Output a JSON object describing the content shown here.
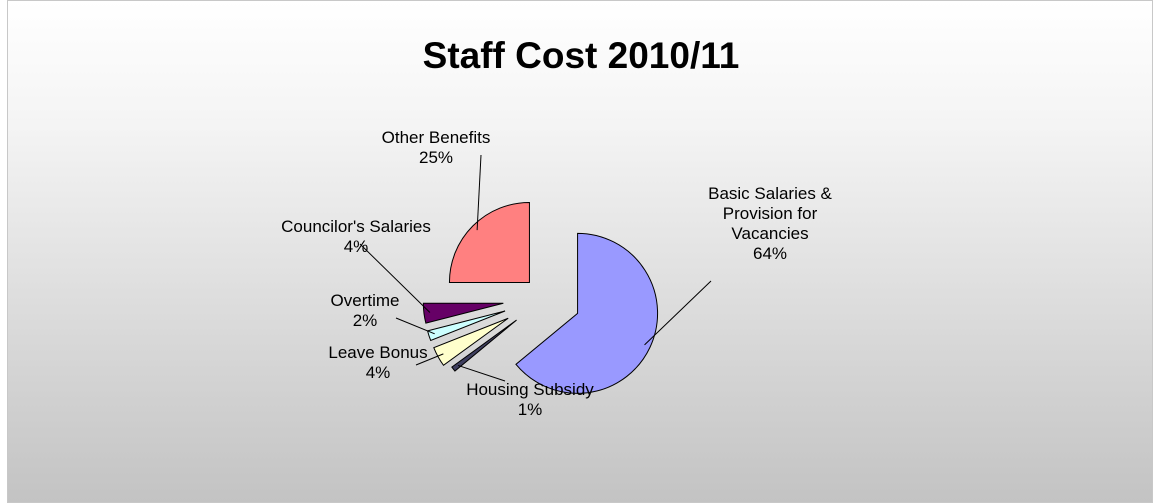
{
  "chart_data": {
    "type": "pie",
    "title": "Staff Cost 2010/11",
    "exploded": true,
    "slices": [
      {
        "label": "Basic Salaries & Provision for Vacancies",
        "label_lines": [
          "Basic Salaries &",
          "Provision for",
          "Vacancies"
        ],
        "percent_label": "64%",
        "value": 64,
        "color": "#9999ff"
      },
      {
        "label": "Housing Subsidy",
        "label_lines": [
          "Housing Subsidy"
        ],
        "percent_label": "1%",
        "value": 1,
        "color": "#3f3f5f"
      },
      {
        "label": "Leave Bonus",
        "label_lines": [
          "Leave Bonus"
        ],
        "percent_label": "4%",
        "value": 4,
        "color": "#ffffcc"
      },
      {
        "label": "Overtime",
        "label_lines": [
          "Overtime"
        ],
        "percent_label": "2%",
        "value": 2,
        "color": "#ccffff"
      },
      {
        "label": "Councilor's Salaries",
        "label_lines": [
          "Councilor's Salaries"
        ],
        "percent_label": "4%",
        "value": 4,
        "color": "#660066"
      },
      {
        "label": "Other Benefits",
        "label_lines": [
          "Other Benefits"
        ],
        "percent_label": "25%",
        "value": 25,
        "color": "#ff8080"
      }
    ]
  }
}
